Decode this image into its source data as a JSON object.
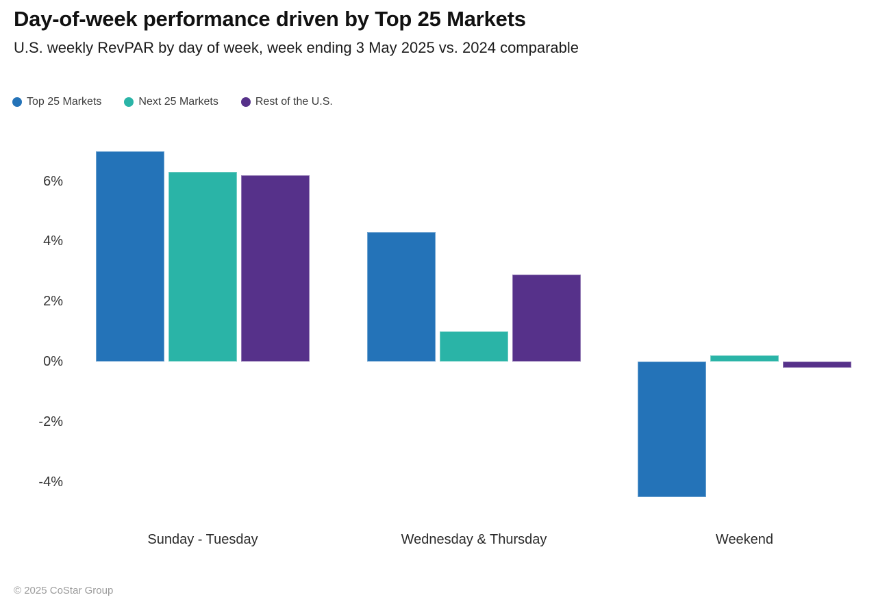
{
  "header": {
    "title": "Day-of-week performance driven by Top 25 Markets",
    "subtitle": "U.S. weekly RevPAR by day of week, week ending 3 May 2025 vs. 2024 comparable"
  },
  "chart_data": {
    "type": "bar",
    "title": "Day-of-week performance driven by Top 25 Markets",
    "subtitle": "U.S. weekly RevPAR by day of week, week ending 3 May 2025 vs. 2024 comparable",
    "categories": [
      "Sunday - Tuesday",
      "Wednesday & Thursday",
      "Weekend"
    ],
    "series": [
      {
        "name": "Top 25 Markets",
        "color": "#2473B8",
        "values": [
          7.0,
          4.3,
          -4.5
        ]
      },
      {
        "name": "Next 25 Markets",
        "color": "#2AB4A7",
        "values": [
          6.3,
          1.0,
          0.2
        ]
      },
      {
        "name": "Rest of the U.S.",
        "color": "#56318A",
        "values": [
          6.2,
          2.9,
          -0.2
        ]
      }
    ],
    "xlabel": "",
    "ylabel": "",
    "y_ticks": [
      6,
      4,
      2,
      0,
      -2,
      -4
    ],
    "y_tick_labels": [
      "6%",
      "4%",
      "2%",
      "0%",
      "-2%",
      "-4%"
    ],
    "ylim": [
      -5.3,
      7.5
    ],
    "grid": false,
    "legend_position": "top-left",
    "unit": "%"
  },
  "footer": {
    "copyright": "© 2025 CoStar Group"
  }
}
